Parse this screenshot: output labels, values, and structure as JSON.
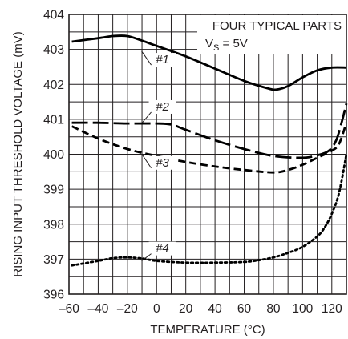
{
  "chart_data": {
    "type": "line",
    "xlabel": "TEMPERATURE (°C)",
    "ylabel": "RISING INPUT THRESHOLD VOLTAGE (mV)",
    "xlim": [
      -60,
      130
    ],
    "ylim": [
      396,
      404
    ],
    "x_ticks": [
      "–60",
      "–40",
      "–20",
      "0",
      "20",
      "40",
      "60",
      "80",
      "100",
      "120"
    ],
    "y_ticks": [
      "396",
      "397",
      "398",
      "399",
      "400",
      "401",
      "402",
      "403",
      "404"
    ],
    "grid": true,
    "annotation": {
      "line1": "FOUR TYPICAL PARTS",
      "line2_main": "V",
      "line2_sub": "S",
      "line2_rest": " = 5V"
    },
    "series": [
      {
        "name": "#1",
        "style": "solid",
        "x": [
          -58,
          -40,
          -30,
          -20,
          -10,
          0,
          20,
          40,
          60,
          75,
          82,
          90,
          100,
          110,
          120,
          130
        ],
        "y": [
          403.22,
          403.32,
          403.38,
          403.38,
          403.25,
          403.1,
          402.8,
          402.45,
          402.1,
          401.9,
          401.85,
          401.95,
          402.2,
          402.4,
          402.48,
          402.48
        ]
      },
      {
        "name": "#2",
        "style": "dashed",
        "x": [
          -58,
          -40,
          -20,
          0,
          10,
          20,
          40,
          60,
          80,
          100,
          110,
          118,
          123,
          127,
          130
        ],
        "y": [
          400.9,
          400.9,
          400.88,
          400.88,
          400.85,
          400.7,
          400.4,
          400.15,
          399.95,
          399.9,
          399.97,
          400.1,
          400.4,
          400.95,
          401.45
        ]
      },
      {
        "name": "#3",
        "style": "short-dashed",
        "x": [
          -58,
          -40,
          -20,
          0,
          20,
          40,
          60,
          80,
          90,
          100,
          110,
          120,
          125,
          130
        ],
        "y": [
          400.8,
          400.45,
          400.15,
          399.95,
          399.78,
          399.65,
          399.55,
          399.48,
          399.55,
          399.7,
          399.9,
          400.1,
          400.3,
          400.9
        ]
      },
      {
        "name": "#4",
        "style": "dotted",
        "x": [
          -58,
          -40,
          -30,
          -20,
          -10,
          0,
          20,
          40,
          60,
          70,
          80,
          90,
          100,
          110,
          115,
          120,
          125,
          130
        ],
        "y": [
          396.82,
          396.95,
          397.03,
          397.05,
          397.02,
          396.95,
          396.9,
          396.9,
          396.92,
          396.97,
          397.05,
          397.18,
          397.35,
          397.65,
          397.9,
          398.3,
          398.9,
          400.0
        ]
      }
    ]
  }
}
